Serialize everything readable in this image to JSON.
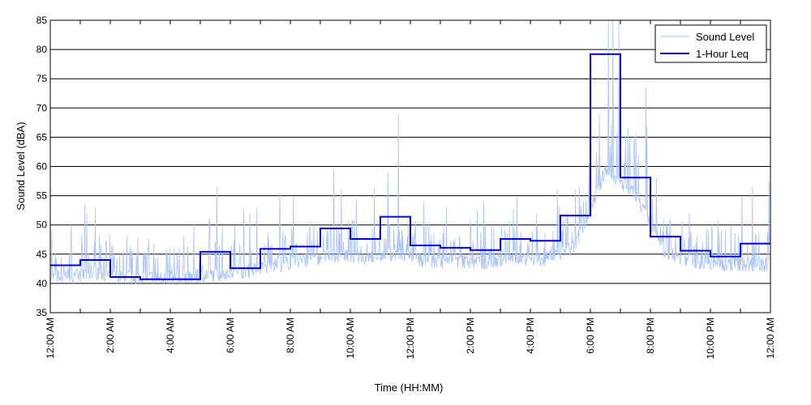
{
  "chart_data": {
    "type": "line",
    "title": "",
    "xlabel": "Time (HH:MM)",
    "ylabel": "Sound Level (dBA)",
    "xlim": [
      0,
      24
    ],
    "ylim": [
      35,
      85
    ],
    "y_ticks": [
      35,
      40,
      45,
      50,
      55,
      60,
      65,
      70,
      75,
      80,
      85
    ],
    "x_ticks": [
      0,
      1,
      2,
      3,
      4,
      5,
      6,
      7,
      8,
      9,
      10,
      11,
      12,
      13,
      14,
      15,
      16,
      17,
      18,
      19,
      20,
      21,
      22,
      23,
      24
    ],
    "x_tick_labels": [
      {
        "hour": 0,
        "label": "12:00 AM"
      },
      {
        "hour": 2,
        "label": "2:00 AM"
      },
      {
        "hour": 4,
        "label": "4:00 AM"
      },
      {
        "hour": 6,
        "label": "6:00 AM"
      },
      {
        "hour": 8,
        "label": "8:00 AM"
      },
      {
        "hour": 10,
        "label": "10:00 AM"
      },
      {
        "hour": 12,
        "label": "12:00 PM"
      },
      {
        "hour": 14,
        "label": "2:00 PM"
      },
      {
        "hour": 16,
        "label": "4:00 PM"
      },
      {
        "hour": 18,
        "label": "6:00 PM"
      },
      {
        "hour": 20,
        "label": "8:00 PM"
      },
      {
        "hour": 22,
        "label": "10:00 PM"
      },
      {
        "hour": 24,
        "label": "12:00 AM"
      }
    ],
    "grid": {
      "horizontal": true,
      "vertical": false
    },
    "legend_position": "top-right",
    "series": [
      {
        "name": "Sound Level",
        "color": "#a9c4f5",
        "style": "noisy-line",
        "hourly_baseline": [
          40.8,
          41.5,
          40.9,
          40.7,
          40.6,
          41.3,
          41.8,
          42.8,
          43.8,
          44.5,
          44.2,
          44.8,
          43.5,
          43.6,
          43.3,
          44.2,
          43.8,
          46.0,
          59.0,
          55.0,
          45.0,
          43.5,
          43.0,
          43.0
        ],
        "peaks": [
          {
            "x": 0.05,
            "y": 49
          },
          {
            "x": 0.7,
            "y": 50
          },
          {
            "x": 1.15,
            "y": 53.5
          },
          {
            "x": 1.5,
            "y": 53
          },
          {
            "x": 2.55,
            "y": 48
          },
          {
            "x": 5.55,
            "y": 56.5
          },
          {
            "x": 6.65,
            "y": 52
          },
          {
            "x": 7.65,
            "y": 55.5
          },
          {
            "x": 8.1,
            "y": 55
          },
          {
            "x": 9.45,
            "y": 59.5
          },
          {
            "x": 9.7,
            "y": 56
          },
          {
            "x": 10.8,
            "y": 56
          },
          {
            "x": 11.25,
            "y": 59
          },
          {
            "x": 11.6,
            "y": 69
          },
          {
            "x": 12.45,
            "y": 54
          },
          {
            "x": 13.2,
            "y": 53
          },
          {
            "x": 14.0,
            "y": 51
          },
          {
            "x": 14.45,
            "y": 54
          },
          {
            "x": 15.55,
            "y": 55
          },
          {
            "x": 16.2,
            "y": 52
          },
          {
            "x": 16.9,
            "y": 56
          },
          {
            "x": 17.5,
            "y": 56
          },
          {
            "x": 18.3,
            "y": 69
          },
          {
            "x": 18.6,
            "y": 85
          },
          {
            "x": 18.75,
            "y": 86
          },
          {
            "x": 18.95,
            "y": 85
          },
          {
            "x": 19.3,
            "y": 60
          },
          {
            "x": 19.6,
            "y": 62
          },
          {
            "x": 19.85,
            "y": 73.5
          },
          {
            "x": 20.2,
            "y": 58
          },
          {
            "x": 20.65,
            "y": 51
          },
          {
            "x": 21.3,
            "y": 52
          },
          {
            "x": 22.05,
            "y": 50
          },
          {
            "x": 22.5,
            "y": 49
          },
          {
            "x": 23.05,
            "y": 55
          },
          {
            "x": 23.4,
            "y": 56.5
          },
          {
            "x": 23.95,
            "y": 57.5
          }
        ]
      },
      {
        "name": "1-Hour Leq",
        "color": "#0000ee",
        "style": "step",
        "hours": [
          0,
          1,
          2,
          3,
          4,
          5,
          6,
          7,
          8,
          9,
          10,
          11,
          12,
          13,
          14,
          15,
          16,
          17,
          18,
          19,
          20,
          21,
          22,
          23
        ],
        "values": [
          43.1,
          44.0,
          41.1,
          40.7,
          40.7,
          45.4,
          42.6,
          45.9,
          46.3,
          49.4,
          47.6,
          51.4,
          46.5,
          46.1,
          45.7,
          47.6,
          47.3,
          51.6,
          79.2,
          58.1,
          48.0,
          45.6,
          44.6,
          46.8
        ]
      }
    ]
  }
}
